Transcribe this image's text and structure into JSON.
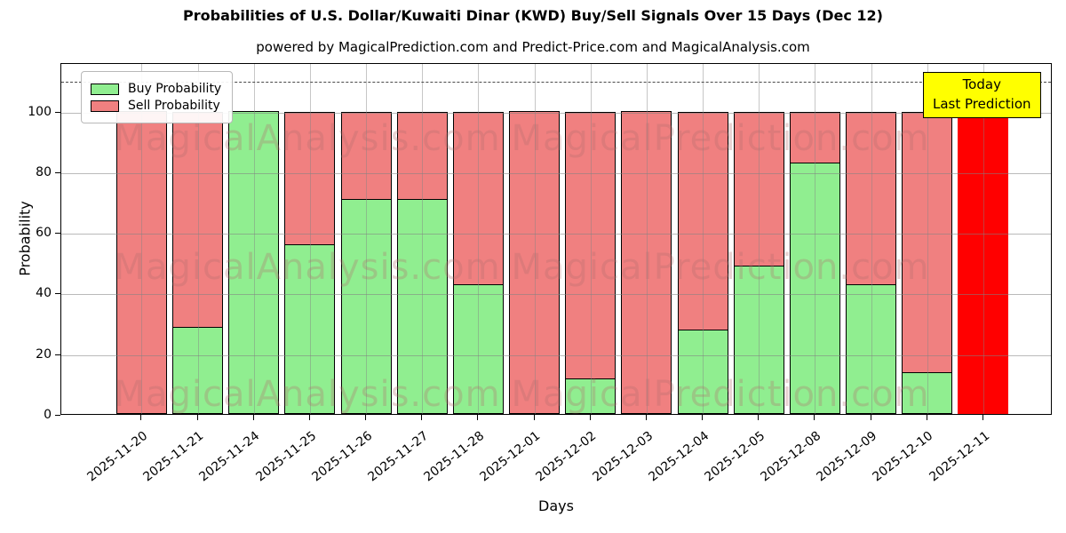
{
  "chart_data": {
    "type": "bar",
    "stacked": true,
    "title": "Probabilities of U.S. Dollar/Kuwaiti Dinar (KWD) Buy/Sell Signals Over 15 Days (Dec 12)",
    "subtitle": "powered by MagicalPrediction.com and Predict-Price.com and MagicalAnalysis.com",
    "xlabel": "Days",
    "ylabel": "Probability",
    "ylim": [
      0,
      116
    ],
    "yticks": [
      0,
      20,
      40,
      60,
      80,
      100
    ],
    "grid": true,
    "legend_position": "upper left",
    "dashed_line_y": 110,
    "categories": [
      "2025-11-20",
      "2025-11-21",
      "2025-11-24",
      "2025-11-25",
      "2025-11-26",
      "2025-11-27",
      "2025-11-28",
      "2025-12-01",
      "2025-12-02",
      "2025-12-03",
      "2025-12-04",
      "2025-12-05",
      "2025-12-08",
      "2025-12-09",
      "2025-12-10",
      "2025-12-11"
    ],
    "series": [
      {
        "name": "Buy Probability",
        "color": "#90ee90",
        "values": [
          0,
          29,
          100,
          56,
          71,
          71,
          43,
          0,
          12,
          0,
          28,
          49,
          83,
          43,
          14,
          0
        ]
      },
      {
        "name": "Sell Probability",
        "color": "#f08080",
        "values": [
          100,
          71,
          0,
          44,
          29,
          29,
          57,
          100,
          88,
          100,
          72,
          51,
          17,
          57,
          86,
          100
        ]
      }
    ],
    "today": {
      "index": 15,
      "value": 100,
      "bar_color": "#ff0000",
      "box_color": "#ffff00",
      "line1": "Today",
      "line2": "Last Prediction"
    },
    "watermarks": [
      "MagicalAnalysis.com",
      "MagicalPrediction.com"
    ]
  }
}
